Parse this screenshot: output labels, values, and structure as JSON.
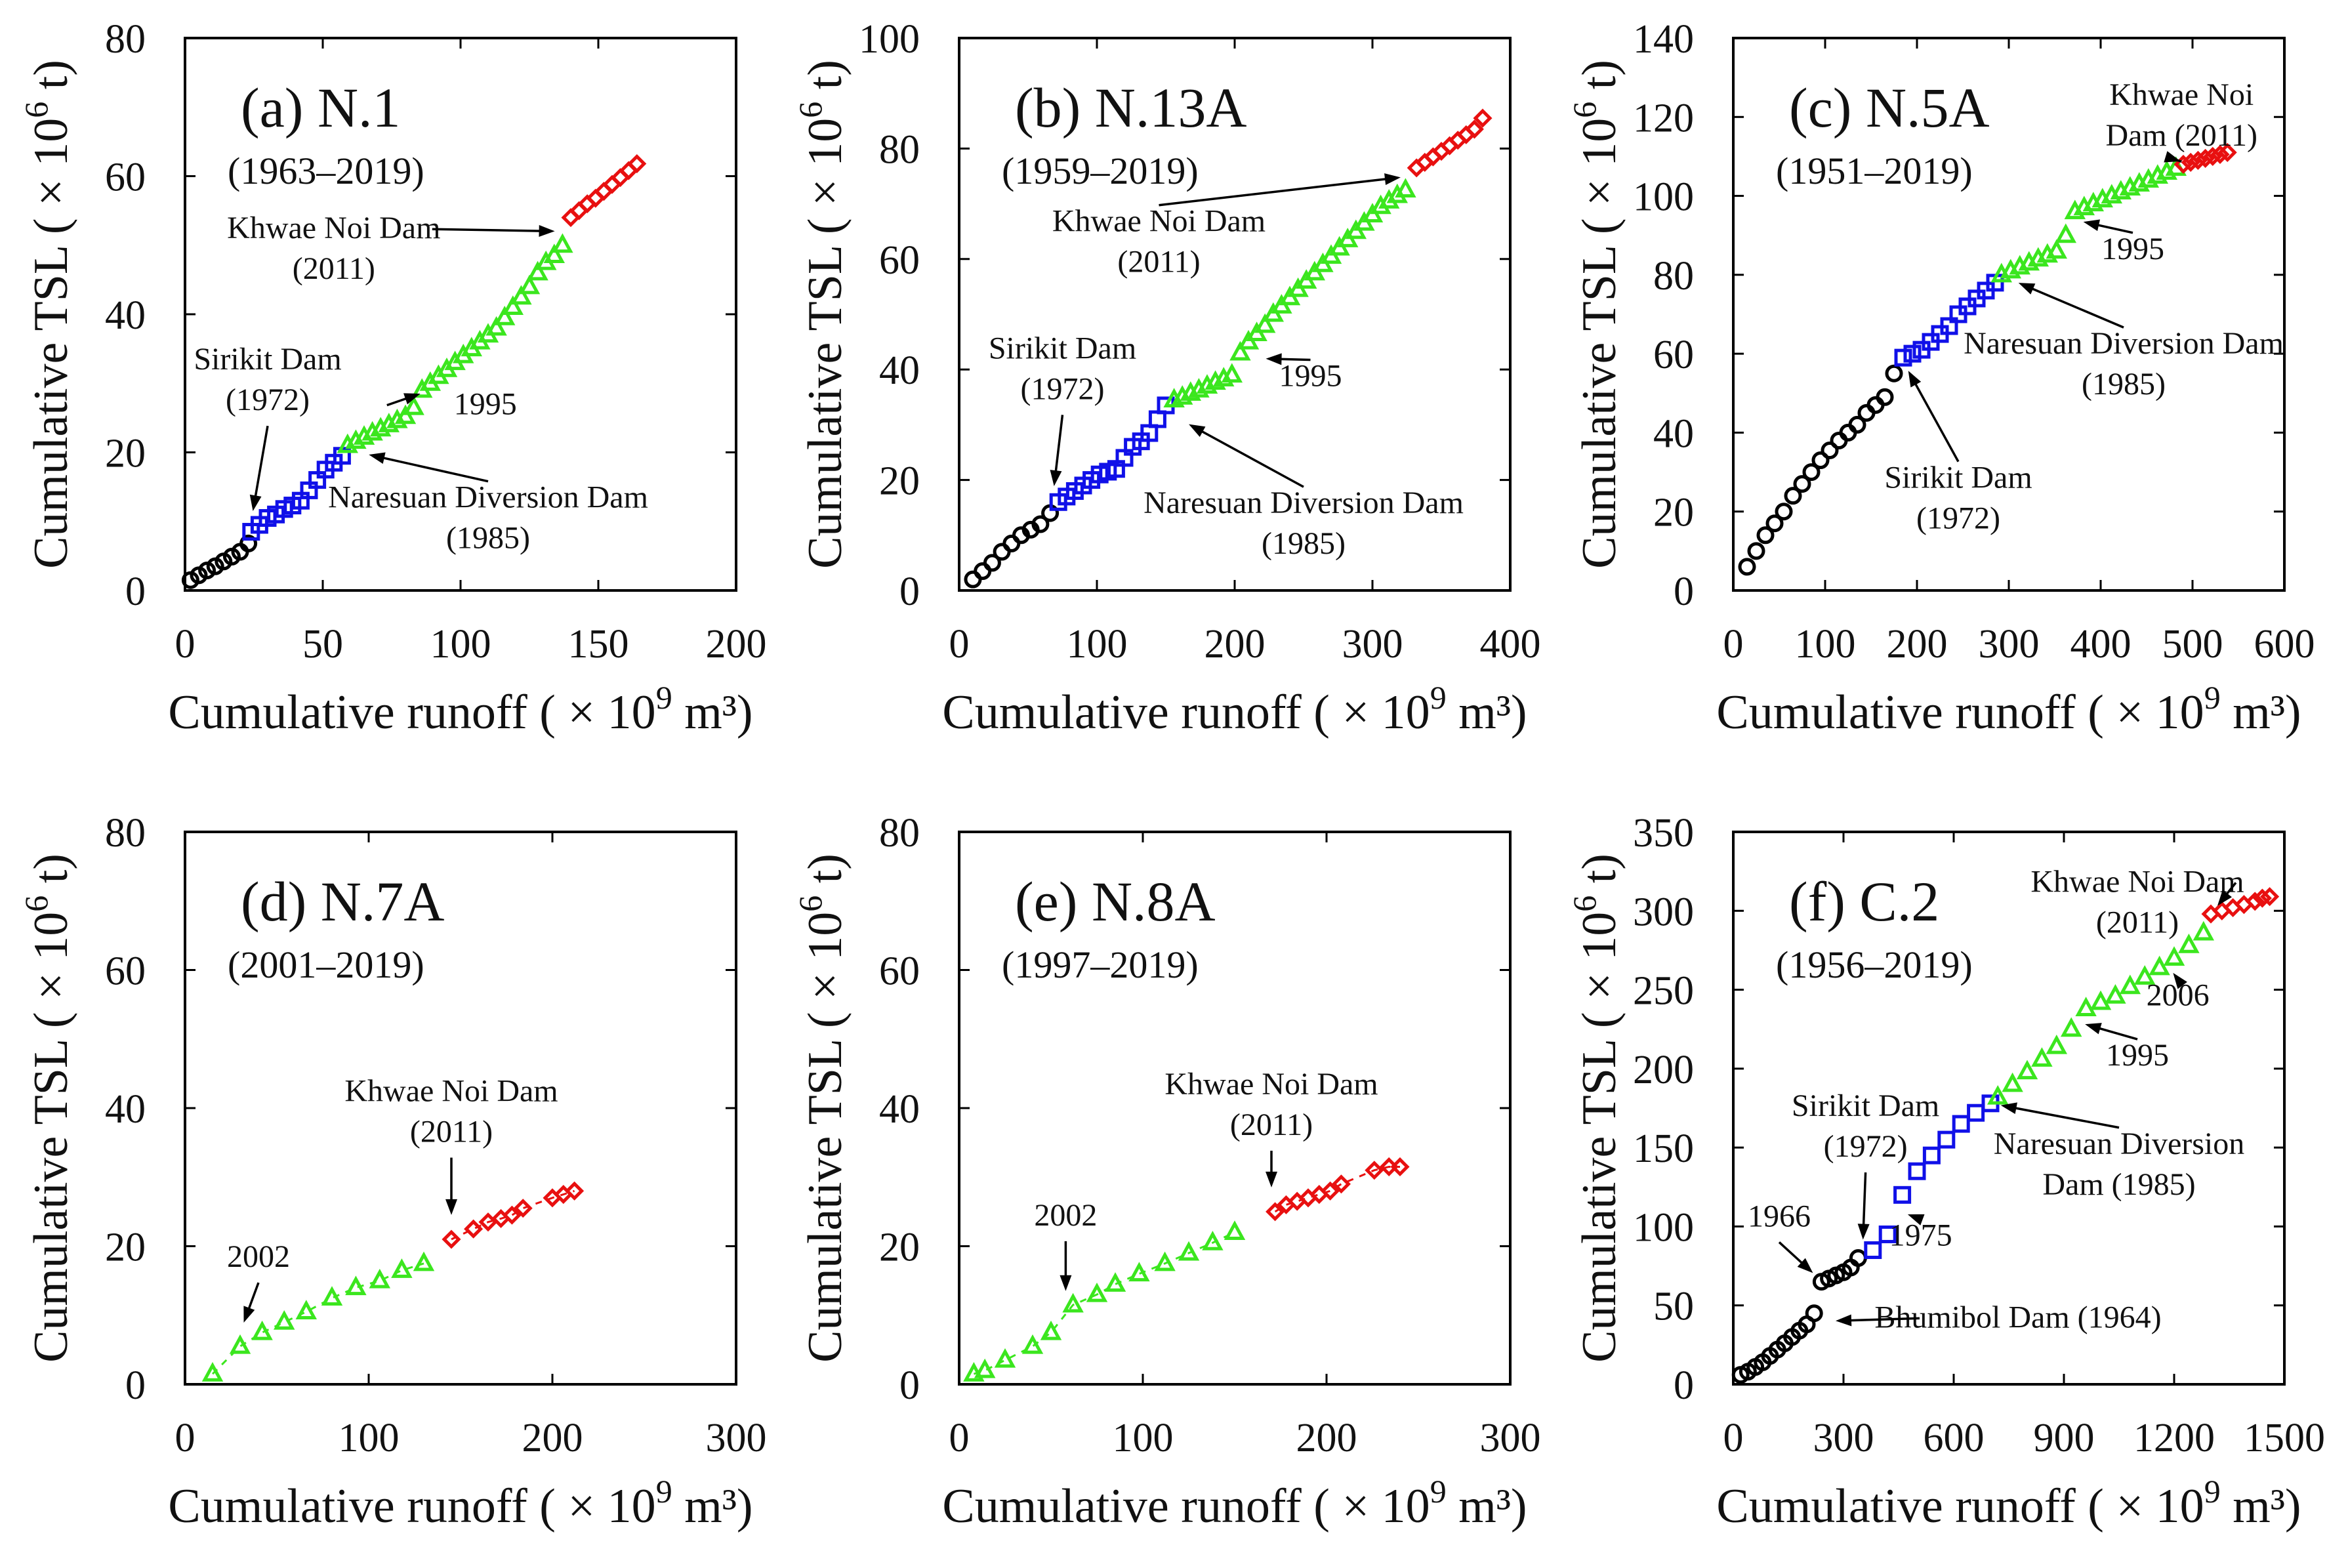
{
  "figure": {
    "colors": {
      "pre": "#000000",
      "p1": "#1010e8",
      "p2": "#3be61e",
      "p3": "#e81010"
    },
    "markers": {
      "pre": "circle",
      "p1": "square",
      "p2": "triangle",
      "p3": "diamond"
    }
  },
  "chart_data": [
    {
      "type": "scatter",
      "panel": "(a) N.1",
      "period": "(1963–2019)",
      "xlabel": "Cumulative runoff",
      "xunit_prefix": "( × 10",
      "xunit_exp": "9",
      "xunit_suffix": " m³)",
      "ylabel": "Cumulative TSL",
      "yunit_prefix": "( × 10",
      "yunit_exp": "6",
      "yunit_suffix": " t)",
      "xlim": [
        0,
        200
      ],
      "ylim": [
        0,
        80
      ],
      "xticks": [
        0,
        50,
        100,
        150,
        200
      ],
      "yticks": [
        0,
        20,
        40,
        60,
        80
      ],
      "series": [
        {
          "name": "pre",
          "x": [
            2,
            5,
            8,
            11,
            14,
            17,
            20,
            23
          ],
          "y": [
            1.5,
            2.2,
            2.9,
            3.5,
            4.2,
            4.9,
            5.6,
            6.8
          ]
        },
        {
          "name": "p1",
          "x": [
            24,
            27,
            30,
            33,
            36,
            39,
            42,
            45,
            48,
            51,
            54,
            57
          ],
          "y": [
            8.5,
            9.5,
            10.5,
            11,
            11.8,
            12.3,
            13,
            14.5,
            16,
            17.5,
            18.5,
            19.5
          ]
        },
        {
          "name": "p2",
          "x": [
            59,
            62,
            65,
            68,
            71,
            74,
            77,
            80,
            83,
            86,
            89,
            92,
            95,
            98,
            101,
            104,
            107,
            110,
            113,
            116,
            119,
            122,
            125,
            128,
            131,
            134,
            137
          ],
          "y": [
            21,
            21.6,
            22.2,
            22.8,
            23.4,
            24,
            24.6,
            25.2,
            26.5,
            29,
            30,
            31,
            32,
            33,
            34,
            35,
            36,
            37,
            38,
            39.5,
            41,
            42.5,
            44,
            46,
            47.5,
            48.5,
            50
          ]
        },
        {
          "name": "p3",
          "x": [
            140,
            143,
            146,
            149,
            152,
            155,
            158,
            161,
            164
          ],
          "y": [
            54,
            55,
            56,
            56.8,
            57.8,
            58.8,
            59.8,
            60.8,
            61.8
          ]
        }
      ],
      "annotations": [
        {
          "lines": [
            "Sirikit Dam",
            "(1972)"
          ],
          "tx": 30,
          "ty": 32,
          "ax": 24,
          "ay": 10
        },
        {
          "lines": [
            "Naresuan Diversion Dam",
            "(1985)"
          ],
          "tx": 110,
          "ty": 12,
          "ax": 63,
          "ay": 20
        },
        {
          "lines": [
            "1995"
          ],
          "tx": 109,
          "ty": 25.5,
          "ax": 89,
          "ay": 29
        },
        {
          "lines": [
            "Khwae Noi Dam",
            "(2011)"
          ],
          "tx": 54,
          "ty": 51,
          "ax": 138,
          "ay": 52
        }
      ]
    },
    {
      "type": "scatter",
      "panel": "(b) N.13A",
      "period": "(1959–2019)",
      "xlabel": "Cumulative runoff",
      "xunit_prefix": "( × 10",
      "xunit_exp": "9",
      "xunit_suffix": " m³)",
      "ylabel": "Cumulative TSL",
      "yunit_prefix": "( × 10",
      "yunit_exp": "6",
      "yunit_suffix": " t)",
      "xlim": [
        0,
        400
      ],
      "ylim": [
        0,
        100
      ],
      "xticks": [
        0,
        100,
        200,
        300,
        400
      ],
      "yticks": [
        0,
        20,
        40,
        60,
        80,
        100
      ],
      "series": [
        {
          "name": "pre",
          "x": [
            10,
            17,
            24,
            31,
            38,
            45,
            52,
            59,
            66
          ],
          "y": [
            2,
            3.5,
            5,
            7,
            8.5,
            10,
            11,
            12,
            14
          ]
        },
        {
          "name": "p1",
          "x": [
            72,
            78,
            84,
            90,
            96,
            102,
            108,
            114,
            120,
            126,
            132,
            138,
            144,
            150
          ],
          "y": [
            16,
            17,
            18,
            19,
            20,
            21,
            21.5,
            22,
            24,
            26,
            27,
            28.5,
            31,
            33.5
          ]
        },
        {
          "name": "p2",
          "x": [
            156,
            162,
            168,
            174,
            180,
            186,
            192,
            198,
            204,
            210,
            216,
            222,
            228,
            234,
            240,
            246,
            252,
            258,
            264,
            270,
            276,
            282,
            288,
            294,
            300,
            306,
            312,
            318,
            324
          ],
          "y": [
            34.5,
            35,
            35.7,
            36.3,
            37,
            37.7,
            38.3,
            39,
            43,
            45,
            46.5,
            48,
            50,
            51.5,
            53,
            54.5,
            56,
            57.5,
            59,
            60.5,
            62,
            63.5,
            65,
            66.5,
            68,
            69.5,
            70.5,
            71.5,
            72.5
          ]
        },
        {
          "name": "p3",
          "x": [
            332,
            338,
            344,
            350,
            356,
            362,
            368,
            374,
            380
          ],
          "y": [
            76.5,
            77.5,
            78.5,
            79.5,
            80.5,
            81.5,
            82.5,
            83.5,
            85.5
          ]
        }
      ],
      "annotations": [
        {
          "lines": [
            "Sirikit Dam",
            "(1972)"
          ],
          "tx": 75,
          "ty": 42,
          "ax": 68,
          "ay": 17
        },
        {
          "lines": [
            "Naresuan Diversion Dam",
            "(1985)"
          ],
          "tx": 250,
          "ty": 14,
          "ax": 160,
          "ay": 31
        },
        {
          "lines": [
            "1995"
          ],
          "tx": 255,
          "ty": 37,
          "ax": 215,
          "ay": 42
        },
        {
          "lines": [
            "Khwae Noi Dam",
            "(2011)"
          ],
          "tx": 145,
          "ty": 65,
          "ax": 328,
          "ay": 75
        }
      ]
    },
    {
      "type": "scatter",
      "panel": "(c) N.5A",
      "period": "(1951–2019)",
      "xlabel": "Cumulative runoff",
      "xunit_prefix": "( × 10",
      "xunit_exp": "9",
      "xunit_suffix": " m³)",
      "ylabel": "Cumulative TSL",
      "yunit_prefix": "( × 10",
      "yunit_exp": "6",
      "yunit_suffix": " t)",
      "xlim": [
        0,
        600
      ],
      "ylim": [
        0,
        140
      ],
      "xticks": [
        0,
        100,
        200,
        300,
        400,
        500,
        600
      ],
      "yticks": [
        0,
        20,
        40,
        60,
        80,
        100,
        120,
        140
      ],
      "series": [
        {
          "name": "pre",
          "x": [
            15,
            25,
            35,
            45,
            55,
            65,
            75,
            85,
            95,
            105,
            115,
            125,
            135,
            145,
            155,
            165,
            175
          ],
          "y": [
            6,
            10,
            14,
            17,
            20,
            24,
            27,
            30,
            33,
            35.5,
            38,
            40,
            42,
            45,
            47,
            49,
            55
          ]
        },
        {
          "name": "p1",
          "x": [
            185,
            195,
            205,
            215,
            225,
            235,
            245,
            255,
            265,
            275,
            285
          ],
          "y": [
            59,
            60,
            61,
            63,
            65,
            67,
            70,
            72,
            74,
            76,
            78
          ]
        },
        {
          "name": "p2",
          "x": [
            292,
            302,
            312,
            322,
            332,
            342,
            352,
            362,
            372,
            382,
            392,
            402,
            412,
            422,
            432,
            442,
            452,
            462,
            472,
            482
          ],
          "y": [
            80,
            81,
            82,
            83,
            84,
            85,
            86,
            90,
            96,
            97,
            98,
            99,
            100,
            101,
            102,
            103,
            104,
            105,
            106,
            107
          ]
        },
        {
          "name": "p3",
          "x": [
            490,
            498,
            506,
            514,
            522,
            530,
            538
          ],
          "y": [
            108,
            108.5,
            109,
            109.5,
            110,
            110.5,
            111
          ]
        }
      ],
      "annotations": [
        {
          "lines": [
            "Sirikit Dam",
            "(1972)"
          ],
          "tx": 245,
          "ty": 26,
          "ax": 185,
          "ay": 58
        },
        {
          "lines": [
            "Naresuan Diversion Dam",
            "(1985)"
          ],
          "tx": 425,
          "ty": 60,
          "ax": 300,
          "ay": 79
        },
        {
          "lines": [
            "1995"
          ],
          "tx": 435,
          "ty": 84,
          "ax": 370,
          "ay": 94
        },
        {
          "lines": [
            "Khwae Noi",
            "Dam (2011)"
          ],
          "tx": 488,
          "ty": 123,
          "ax": 498,
          "ay": 108
        }
      ]
    },
    {
      "type": "scatter",
      "panel": "(d) N.7A",
      "period": "(2001–2019)",
      "xlabel": "Cumulative runoff",
      "xunit_prefix": "( × 10",
      "xunit_exp": "9",
      "xunit_suffix": " m³)",
      "ylabel": "Cumulative TSL",
      "yunit_prefix": "( × 10",
      "yunit_exp": "6",
      "yunit_suffix": " t)",
      "xlim": [
        0,
        300
      ],
      "ylim": [
        0,
        80
      ],
      "xticks": [
        0,
        100,
        200,
        300
      ],
      "yticks": [
        0,
        20,
        40,
        60,
        80
      ],
      "series": [
        {
          "name": "p2",
          "x": [
            15,
            30,
            42,
            54,
            66,
            80,
            93,
            106,
            118,
            130
          ],
          "y": [
            1.5,
            5.5,
            7.5,
            9,
            10.5,
            12.5,
            14,
            15,
            16.5,
            17.5
          ]
        },
        {
          "name": "p3",
          "x": [
            145,
            157,
            165,
            172,
            178,
            184,
            200,
            206,
            212
          ],
          "y": [
            21,
            22.5,
            23.5,
            24,
            24.5,
            25.5,
            27,
            27.5,
            28
          ]
        }
      ],
      "annotations": [
        {
          "lines": [
            "2002"
          ],
          "tx": 40,
          "ty": 17,
          "ax": 30,
          "ay": 7.5
        },
        {
          "lines": [
            "Khwae Noi Dam",
            "(2011)"
          ],
          "tx": 145,
          "ty": 41,
          "ax": 145,
          "ay": 23
        }
      ]
    },
    {
      "type": "scatter",
      "panel": "(e) N.8A",
      "period": "(1997–2019)",
      "xlabel": "Cumulative runoff",
      "xunit_prefix": "( × 10",
      "xunit_exp": "9",
      "xunit_suffix": " m³)",
      "ylabel": "Cumulative TSL",
      "yunit_prefix": "( × 10",
      "yunit_exp": "6",
      "yunit_suffix": " t)",
      "xlim": [
        0,
        300
      ],
      "ylim": [
        0,
        80
      ],
      "xticks": [
        0,
        100,
        200,
        300
      ],
      "yticks": [
        0,
        20,
        40,
        60,
        80
      ],
      "series": [
        {
          "name": "p2",
          "x": [
            8,
            14,
            25,
            40,
            50,
            62,
            75,
            85,
            98,
            112,
            125,
            138,
            150
          ],
          "y": [
            1.5,
            2,
            3.5,
            5.5,
            7.5,
            11.5,
            13,
            14.5,
            16,
            17.5,
            19,
            20.5,
            22
          ]
        },
        {
          "name": "p3",
          "x": [
            172,
            178,
            184,
            190,
            196,
            202,
            208,
            226,
            234,
            240
          ],
          "y": [
            25,
            26,
            26.5,
            27,
            27.5,
            28,
            29,
            31,
            31.5,
            31.5
          ]
        }
      ],
      "annotations": [
        {
          "lines": [
            "2002"
          ],
          "tx": 58,
          "ty": 23,
          "ax": 58,
          "ay": 12
        },
        {
          "lines": [
            "Khwae Noi Dam",
            "(2011)"
          ],
          "tx": 170,
          "ty": 42,
          "ax": 170,
          "ay": 27
        }
      ]
    },
    {
      "type": "scatter",
      "panel": "(f) C.2",
      "period": "(1956–2019)",
      "xlabel": "Cumulative runoff",
      "xunit_prefix": "( × 10",
      "xunit_exp": "9",
      "xunit_suffix": " m³)",
      "ylabel": "Cumulative TSL",
      "yunit_prefix": "( × 10",
      "yunit_exp": "6",
      "yunit_suffix": " t)",
      "xlim": [
        0,
        1500
      ],
      "ylim": [
        0,
        350
      ],
      "xticks": [
        0,
        300,
        600,
        900,
        1200,
        1500
      ],
      "yticks": [
        0,
        50,
        100,
        150,
        200,
        250,
        300,
        350
      ],
      "series": [
        {
          "name": "pre",
          "x": [
            20,
            40,
            60,
            80,
            100,
            120,
            140,
            160,
            180,
            200,
            220,
            240,
            260,
            280,
            300,
            320,
            340
          ],
          "y": [
            6,
            8,
            11,
            14,
            18,
            22,
            26,
            30,
            34,
            38,
            45,
            65,
            67,
            69,
            71,
            74,
            80
          ]
        },
        {
          "name": "p1",
          "x": [
            380,
            420,
            460,
            500,
            540,
            580,
            620,
            660,
            700
          ],
          "y": [
            85,
            95,
            120,
            135,
            145,
            155,
            165,
            172,
            178
          ]
        },
        {
          "name": "p2",
          "x": [
            720,
            760,
            800,
            840,
            880,
            920,
            960,
            1000,
            1040,
            1080,
            1120,
            1160,
            1200,
            1240,
            1280
          ],
          "y": [
            182,
            190,
            198,
            206,
            214,
            225,
            238,
            242,
            246,
            252,
            258,
            264,
            270,
            278,
            286
          ]
        },
        {
          "name": "p3",
          "x": [
            1300,
            1330,
            1360,
            1390,
            1420,
            1440,
            1460
          ],
          "y": [
            298,
            300,
            302,
            304,
            306,
            308,
            309
          ]
        }
      ],
      "annotations": [
        {
          "lines": [
            "1966"
          ],
          "tx": 125,
          "ty": 100,
          "ax": 238,
          "ay": 66
        },
        {
          "lines": [
            "Sirikit Dam",
            "(1972)"
          ],
          "tx": 360,
          "ty": 170,
          "ax": 352,
          "ay": 85
        },
        {
          "lines": [
            "1975"
          ],
          "tx": 510,
          "ty": 88,
          "ax": 448,
          "ay": 110
        },
        {
          "lines": [
            "Naresuan Diversion",
            "Dam (1985)"
          ],
          "tx": 1050,
          "ty": 146,
          "ax": 700,
          "ay": 178
        },
        {
          "lines": [
            "1995"
          ],
          "tx": 1100,
          "ty": 202,
          "ax": 930,
          "ay": 230
        },
        {
          "lines": [
            "2006"
          ],
          "tx": 1210,
          "ty": 240,
          "ax": 1180,
          "ay": 266
        },
        {
          "lines": [
            "Khwae Noi Dam",
            "(2011)"
          ],
          "tx": 1100,
          "ty": 312,
          "ax": 1300,
          "ay": 298
        },
        {
          "lines": [
            "Bhumibol Dam (1964)"
          ],
          "tx": 775,
          "ty": 36,
          "ax": 250,
          "ay": 40
        }
      ]
    }
  ]
}
